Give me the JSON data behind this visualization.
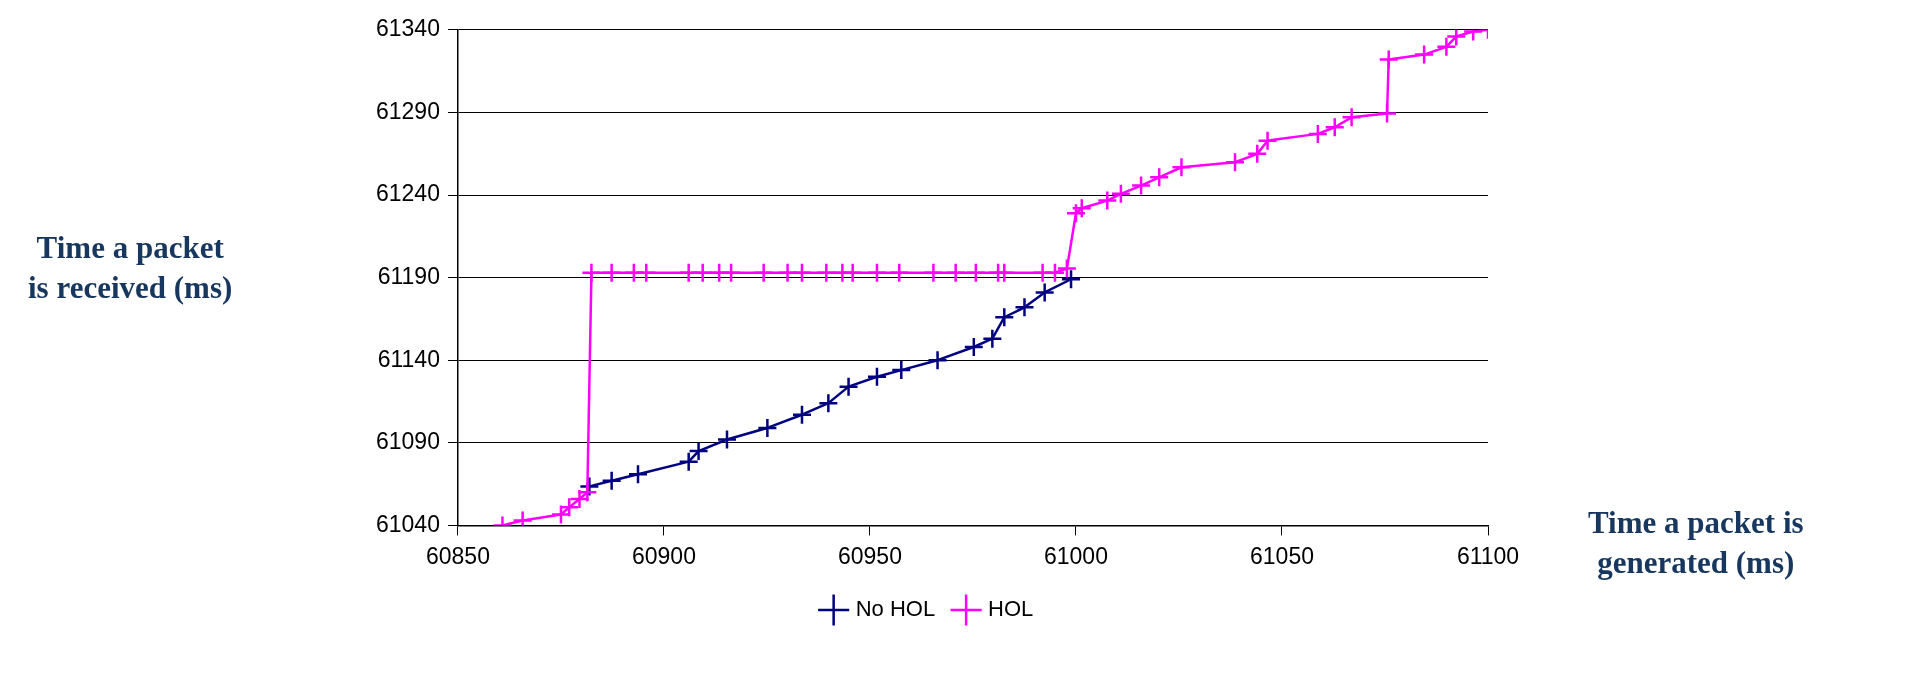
{
  "chart_data": {
    "type": "line",
    "xlabel": "Time a packet is\ngenerated (ms)",
    "ylabel": "Time a packet\nis received (ms)",
    "xlim": [
      60850,
      61100
    ],
    "xticks": [
      60850,
      60900,
      60950,
      61000,
      61050,
      61100
    ],
    "ylim": [
      61040,
      61340
    ],
    "yticks": [
      61040,
      61090,
      61140,
      61190,
      61240,
      61290,
      61340
    ],
    "grid": "y",
    "legend": "bottom",
    "marker": "cross",
    "line_style": "solid",
    "series": [
      {
        "name": "No HOL",
        "color": "#000080",
        "x": [
          60881.9,
          60887.3,
          60893.7,
          60906,
          60908.4,
          60915.3,
          60925.1,
          60933.5,
          60939.9,
          60944.8,
          60951.7,
          60957.6,
          60966.4,
          60975.2,
          60979.7,
          60982.6,
          60987.5,
          60992.4,
          60998.8
        ],
        "values": [
          61063.6,
          61067,
          61071,
          61078.6,
          61085,
          61092,
          61099,
          61107,
          61114,
          61124,
          61130,
          61134,
          61140,
          61148,
          61153,
          61166,
          61172,
          61181,
          61189
        ]
      },
      {
        "name": "HOL",
        "color": "#ff00ff",
        "x": [
          60860.8,
          60865.7,
          60875,
          60877,
          60879.5,
          60881.4,
          60882.4,
          60887.3,
          60892.7,
          60895.7,
          60906,
          60909.4,
          60913.4,
          60916.3,
          60924.2,
          60930,
          60933.5,
          60939.4,
          60943.3,
          60945.8,
          60951.7,
          60957.1,
          60965.4,
          60970.8,
          60975.7,
          60981.1,
          60982.6,
          60991.9,
          60994.9,
          60997.8,
          61000,
          61001.4,
          61007.6,
          61010.9,
          61015.8,
          61020.2,
          61025.6,
          61038.6,
          61044,
          61046.5,
          61058.7,
          61062.8,
          61066.9,
          61075.5,
          61075.9,
          61084.5,
          61089.9,
          61092.3,
          61096.4,
          61100
        ],
        "values": [
          61040,
          61043,
          61046.6,
          61051,
          61056,
          61060,
          61193,
          61193,
          61193,
          61193,
          61193,
          61193,
          61193,
          61193,
          61193,
          61193,
          61193,
          61193,
          61193,
          61193,
          61193,
          61193,
          61193,
          61193,
          61193,
          61193,
          61193,
          61193,
          61193,
          61195.5,
          61229,
          61232,
          61236.6,
          61240.7,
          61245.7,
          61250.7,
          61256.8,
          61259.8,
          61264.9,
          61272.9,
          61277,
          61281,
          61287,
          61289.4,
          61322,
          61325,
          61329.7,
          61336,
          61339,
          61340
        ]
      }
    ]
  }
}
